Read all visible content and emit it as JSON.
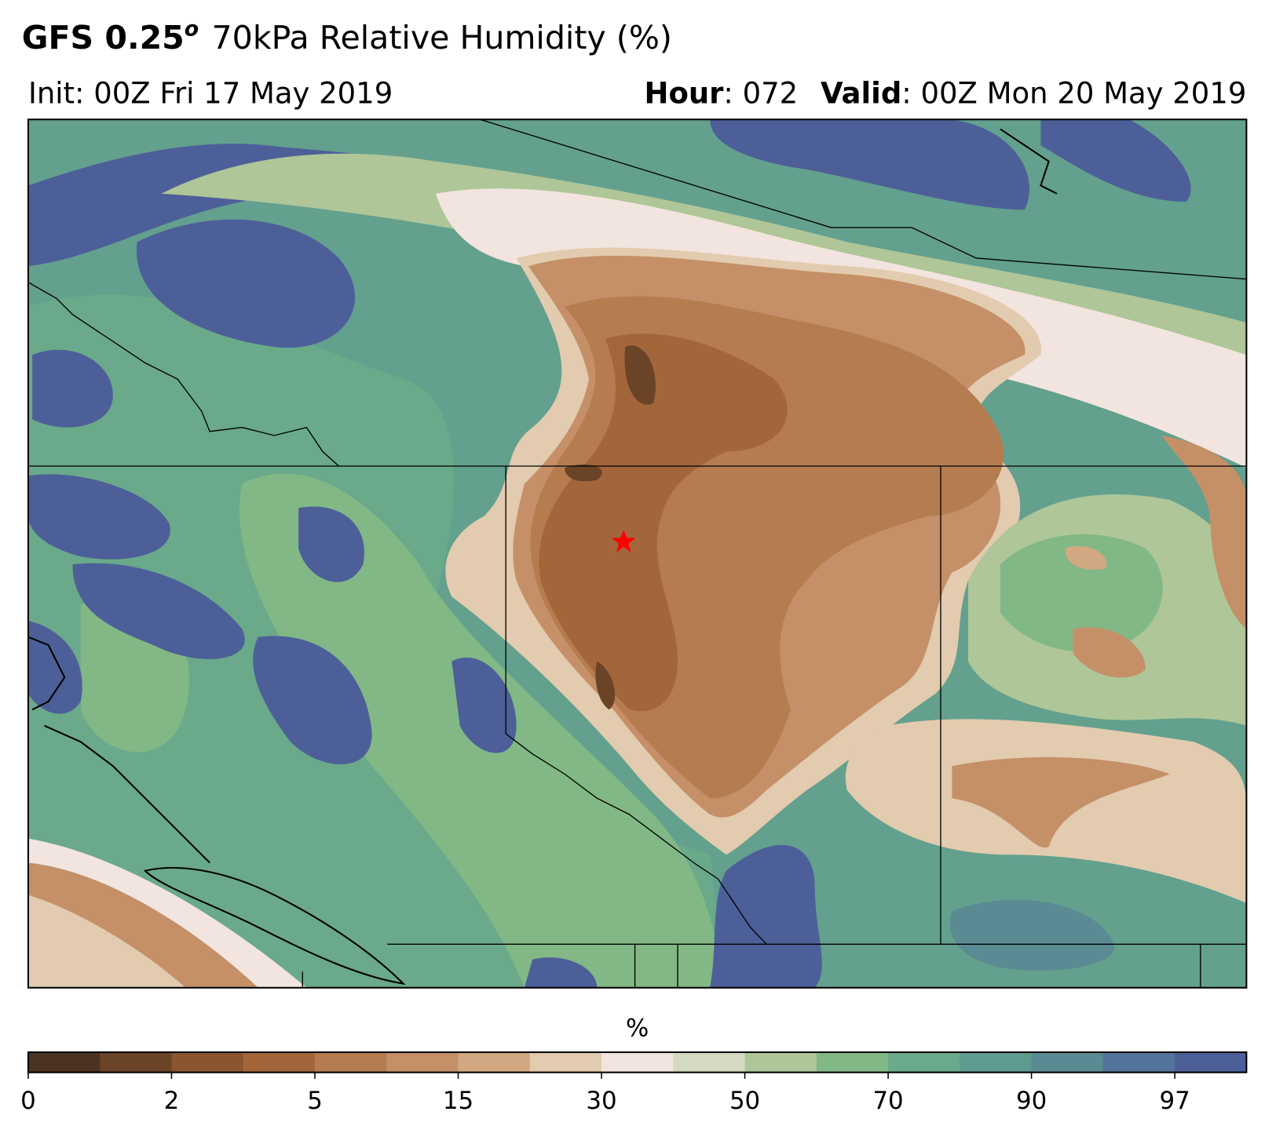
{
  "header": {
    "title_bold": "GFS 0.25",
    "title_sup": "o",
    "title_rest": "70kPa Relative Humidity (%)",
    "init": "Init: 00Z Fri 17 May 2019",
    "hour_label": "Hour",
    "hour_value": ": 072",
    "valid_label": "Valid",
    "valid_value": ": 00Z Mon 20 May 2019"
  },
  "colorbar": {
    "label": "%",
    "colors": [
      "#4a3320",
      "#6b4428",
      "#8a5530",
      "#a3663a",
      "#b57c50",
      "#c59068",
      "#d2a882",
      "#e2cbae",
      "#f2e4de",
      "#d6d9c2",
      "#aec698",
      "#82b885",
      "#6aa98a",
      "#5f9a8f",
      "#5a8b92",
      "#53739a",
      "#4d5f98"
    ],
    "ticks": [
      0,
      2,
      5,
      15,
      30,
      50,
      70,
      90,
      97
    ]
  }
}
